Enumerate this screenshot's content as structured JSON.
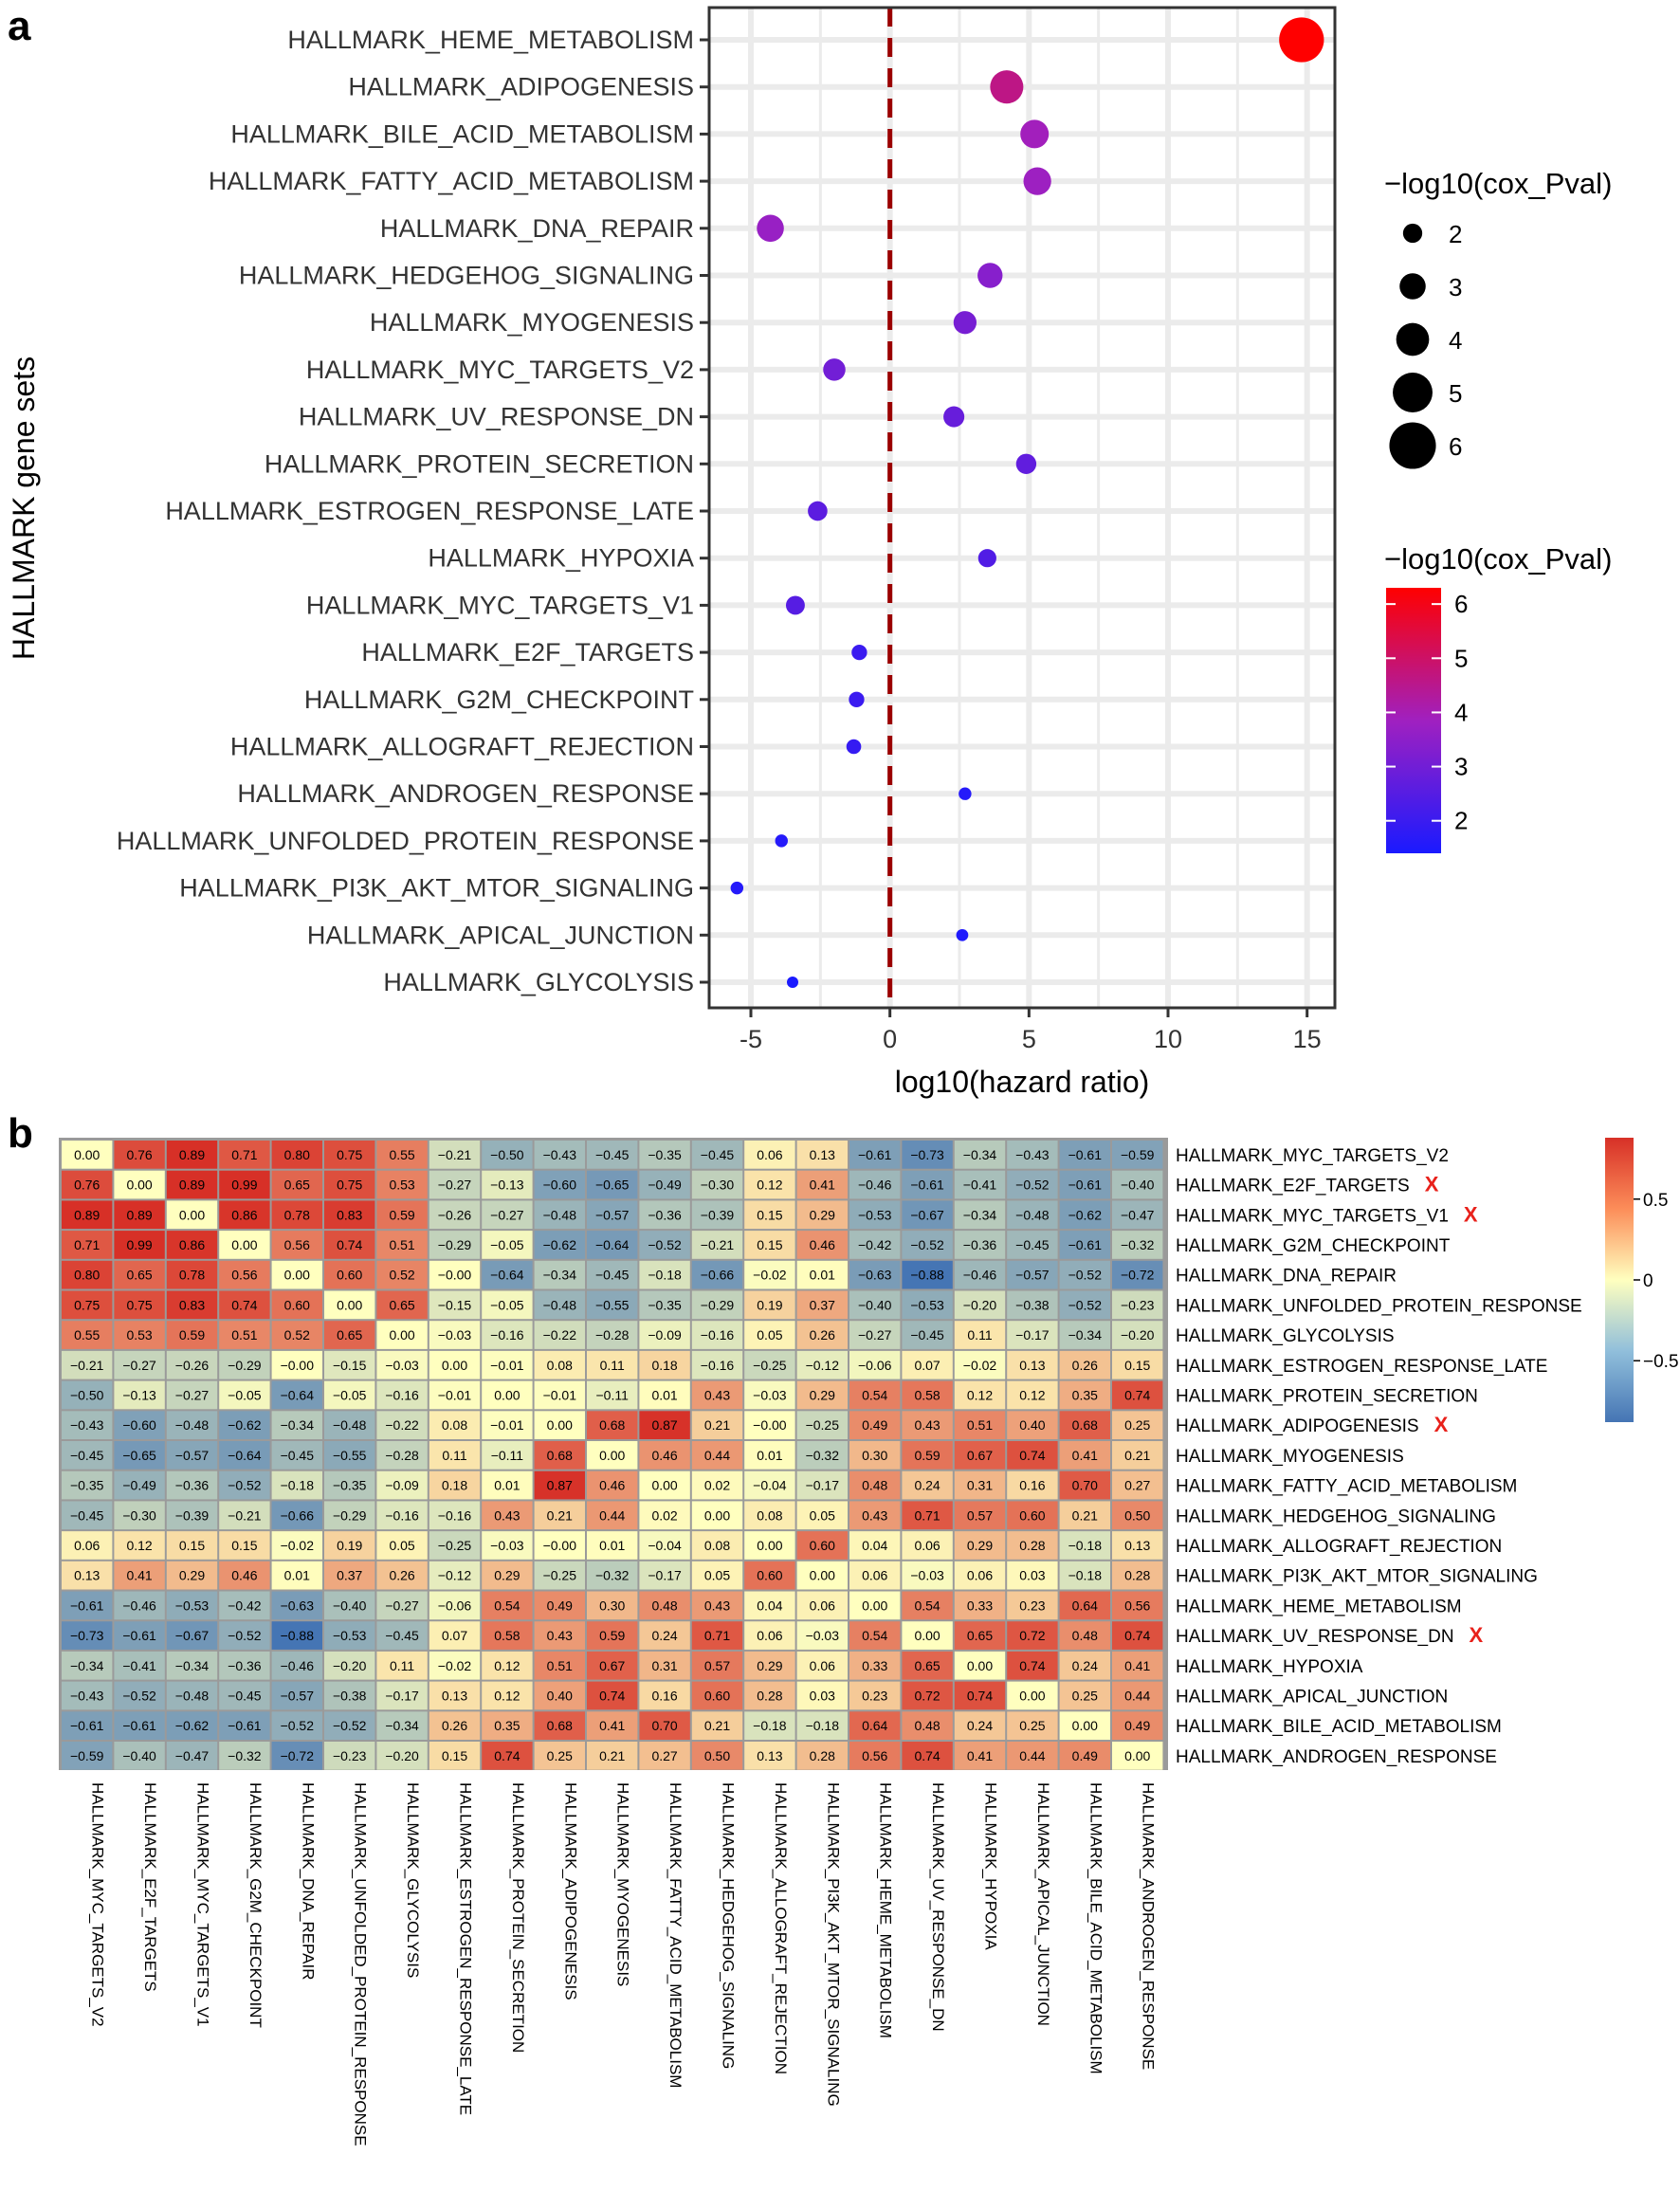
{
  "panels": {
    "a": "a",
    "b": "b"
  },
  "colors": {
    "low": "#1a1aff",
    "mid": "#a020c0",
    "high": "#ff0000",
    "dashed_line": "#9b0000",
    "hm_neg": "#4575b4",
    "hm_zero": "#ffffbf",
    "hm_pos": "#d73027",
    "mark": "#e8211b"
  },
  "chart_data": [
    {
      "type": "scatter",
      "xlabel": "log10(hazard ratio)",
      "ylabel": "HALLMARK gene sets",
      "xlim": [
        -6.5,
        16
      ],
      "xticks": [
        "-5",
        "0",
        "5",
        "10",
        "15"
      ],
      "xtick_values": [
        -5,
        0,
        5,
        10,
        15
      ],
      "reference_line_x": 0,
      "grid": true,
      "legend_position": "right",
      "size_legend": {
        "title": "−log10(cox_Pval)",
        "labels": [
          "2",
          "3",
          "4",
          "5",
          "6"
        ]
      },
      "color_legend": {
        "title": "−log10(cox_Pval)",
        "labels": [
          "6",
          "5",
          "4",
          "3",
          "2"
        ],
        "range": [
          1.4,
          6.3
        ]
      },
      "categories": [
        "HALLMARK_HEME_METABOLISM",
        "HALLMARK_ADIPOGENESIS",
        "HALLMARK_BILE_ACID_METABOLISM",
        "HALLMARK_FATTY_ACID_METABOLISM",
        "HALLMARK_DNA_REPAIR",
        "HALLMARK_HEDGEHOG_SIGNALING",
        "HALLMARK_MYOGENESIS",
        "HALLMARK_MYC_TARGETS_V2",
        "HALLMARK_UV_RESPONSE_DN",
        "HALLMARK_PROTEIN_SECRETION",
        "HALLMARK_ESTROGEN_RESPONSE_LATE",
        "HALLMARK_HYPOXIA",
        "HALLMARK_MYC_TARGETS_V1",
        "HALLMARK_E2F_TARGETS",
        "HALLMARK_G2M_CHECKPOINT",
        "HALLMARK_ALLOGRAFT_REJECTION",
        "HALLMARK_ANDROGEN_RESPONSE",
        "HALLMARK_UNFOLDED_PROTEIN_RESPONSE",
        "HALLMARK_PI3K_AKT_MTOR_SIGNALING",
        "HALLMARK_APICAL_JUNCTION",
        "HALLMARK_GLYCOLYSIS"
      ],
      "x": [
        14.8,
        4.2,
        5.2,
        5.3,
        -4.3,
        3.6,
        2.7,
        -2.0,
        2.3,
        4.9,
        -2.6,
        3.5,
        -3.4,
        -1.1,
        -1.2,
        -1.3,
        2.7,
        -3.9,
        -5.5,
        2.6,
        -3.5
      ],
      "neglog10_p": [
        6.3,
        4.6,
        3.9,
        3.8,
        3.7,
        3.4,
        3.1,
        3.0,
        2.8,
        2.7,
        2.6,
        2.4,
        2.5,
        2.0,
        2.0,
        1.9,
        1.6,
        1.6,
        1.6,
        1.5,
        1.4
      ]
    },
    {
      "type": "heatmap",
      "color_scale_ticks": [
        "0.5",
        "0",
        "−0.5"
      ],
      "color_scale_values": [
        0.5,
        0,
        -0.5
      ],
      "range": [
        -0.88,
        0.88
      ],
      "rows": [
        "HALLMARK_MYC_TARGETS_V2",
        "HALLMARK_E2F_TARGETS",
        "HALLMARK_MYC_TARGETS_V1",
        "HALLMARK_G2M_CHECKPOINT",
        "HALLMARK_DNA_REPAIR",
        "HALLMARK_UNFOLDED_PROTEIN_RESPONSE",
        "HALLMARK_GLYCOLYSIS",
        "HALLMARK_ESTROGEN_RESPONSE_LATE",
        "HALLMARK_PROTEIN_SECRETION",
        "HALLMARK_ADIPOGENESIS",
        "HALLMARK_MYOGENESIS",
        "HALLMARK_FATTY_ACID_METABOLISM",
        "HALLMARK_HEDGEHOG_SIGNALING",
        "HALLMARK_ALLOGRAFT_REJECTION",
        "HALLMARK_PI3K_AKT_MTOR_SIGNALING",
        "HALLMARK_HEME_METABOLISM",
        "HALLMARK_UV_RESPONSE_DN",
        "HALLMARK_HYPOXIA",
        "HALLMARK_APICAL_JUNCTION",
        "HALLMARK_BILE_ACID_METABOLISM",
        "HALLMARK_ANDROGEN_RESPONSE"
      ],
      "marked_rows": [
        "HALLMARK_E2F_TARGETS",
        "HALLMARK_MYC_TARGETS_V1",
        "HALLMARK_ADIPOGENESIS",
        "HALLMARK_UV_RESPONSE_DN"
      ],
      "mark_label": "X",
      "values": [
        [
          "0.00",
          "0.76",
          "0.89",
          "0.71",
          "0.80",
          "0.75",
          "0.55",
          "−0.21",
          "−0.50",
          "−0.43",
          "−0.45",
          "−0.35",
          "−0.45",
          "0.06",
          "0.13",
          "−0.61",
          "−0.73",
          "−0.34",
          "−0.43",
          "−0.61",
          "−0.59"
        ],
        [
          "0.76",
          "0.00",
          "0.89",
          "0.99",
          "0.65",
          "0.75",
          "0.53",
          "−0.27",
          "−0.13",
          "−0.60",
          "−0.65",
          "−0.49",
          "−0.30",
          "0.12",
          "0.41",
          "−0.46",
          "−0.61",
          "−0.41",
          "−0.52",
          "−0.61",
          "−0.40"
        ],
        [
          "0.89",
          "0.89",
          "0.00",
          "0.86",
          "0.78",
          "0.83",
          "0.59",
          "−0.26",
          "−0.27",
          "−0.48",
          "−0.57",
          "−0.36",
          "−0.39",
          "0.15",
          "0.29",
          "−0.53",
          "−0.67",
          "−0.34",
          "−0.48",
          "−0.62",
          "−0.47"
        ],
        [
          "0.71",
          "0.99",
          "0.86",
          "0.00",
          "0.56",
          "0.74",
          "0.51",
          "−0.29",
          "−0.05",
          "−0.62",
          "−0.64",
          "−0.52",
          "−0.21",
          "0.15",
          "0.46",
          "−0.42",
          "−0.52",
          "−0.36",
          "−0.45",
          "−0.61",
          "−0.32"
        ],
        [
          "0.80",
          "0.65",
          "0.78",
          "0.56",
          "0.00",
          "0.60",
          "0.52",
          "−0.00",
          "−0.64",
          "−0.34",
          "−0.45",
          "−0.18",
          "−0.66",
          "−0.02",
          "0.01",
          "−0.63",
          "−0.88",
          "−0.46",
          "−0.57",
          "−0.52",
          "−0.72"
        ],
        [
          "0.75",
          "0.75",
          "0.83",
          "0.74",
          "0.60",
          "0.00",
          "0.65",
          "−0.15",
          "−0.05",
          "−0.48",
          "−0.55",
          "−0.35",
          "−0.29",
          "0.19",
          "0.37",
          "−0.40",
          "−0.53",
          "−0.20",
          "−0.38",
          "−0.52",
          "−0.23"
        ],
        [
          "0.55",
          "0.53",
          "0.59",
          "0.51",
          "0.52",
          "0.65",
          "0.00",
          "−0.03",
          "−0.16",
          "−0.22",
          "−0.28",
          "−0.09",
          "−0.16",
          "0.05",
          "0.26",
          "−0.27",
          "−0.45",
          "0.11",
          "−0.17",
          "−0.34",
          "−0.20"
        ],
        [
          "−0.21",
          "−0.27",
          "−0.26",
          "−0.29",
          "−0.00",
          "−0.15",
          "−0.03",
          "0.00",
          "−0.01",
          "0.08",
          "0.11",
          "0.18",
          "−0.16",
          "−0.25",
          "−0.12",
          "−0.06",
          "0.07",
          "−0.02",
          "0.13",
          "0.26",
          "0.15"
        ],
        [
          "−0.50",
          "−0.13",
          "−0.27",
          "−0.05",
          "−0.64",
          "−0.05",
          "−0.16",
          "−0.01",
          "0.00",
          "−0.01",
          "−0.11",
          "0.01",
          "0.43",
          "−0.03",
          "0.29",
          "0.54",
          "0.58",
          "0.12",
          "0.12",
          "0.35",
          "0.74"
        ],
        [
          "−0.43",
          "−0.60",
          "−0.48",
          "−0.62",
          "−0.34",
          "−0.48",
          "−0.22",
          "0.08",
          "−0.01",
          "0.00",
          "0.68",
          "0.87",
          "0.21",
          "−0.00",
          "−0.25",
          "0.49",
          "0.43",
          "0.51",
          "0.40",
          "0.68",
          "0.25"
        ],
        [
          "−0.45",
          "−0.65",
          "−0.57",
          "−0.64",
          "−0.45",
          "−0.55",
          "−0.28",
          "0.11",
          "−0.11",
          "0.68",
          "0.00",
          "0.46",
          "0.44",
          "0.01",
          "−0.32",
          "0.30",
          "0.59",
          "0.67",
          "0.74",
          "0.41",
          "0.21"
        ],
        [
          "−0.35",
          "−0.49",
          "−0.36",
          "−0.52",
          "−0.18",
          "−0.35",
          "−0.09",
          "0.18",
          "0.01",
          "0.87",
          "0.46",
          "0.00",
          "0.02",
          "−0.04",
          "−0.17",
          "0.48",
          "0.24",
          "0.31",
          "0.16",
          "0.70",
          "0.27"
        ],
        [
          "−0.45",
          "−0.30",
          "−0.39",
          "−0.21",
          "−0.66",
          "−0.29",
          "−0.16",
          "−0.16",
          "0.43",
          "0.21",
          "0.44",
          "0.02",
          "0.00",
          "0.08",
          "0.05",
          "0.43",
          "0.71",
          "0.57",
          "0.60",
          "0.21",
          "0.50"
        ],
        [
          "0.06",
          "0.12",
          "0.15",
          "0.15",
          "−0.02",
          "0.19",
          "0.05",
          "−0.25",
          "−0.03",
          "−0.00",
          "0.01",
          "−0.04",
          "0.08",
          "0.00",
          "0.60",
          "0.04",
          "0.06",
          "0.29",
          "0.28",
          "−0.18",
          "0.13"
        ],
        [
          "0.13",
          "0.41",
          "0.29",
          "0.46",
          "0.01",
          "0.37",
          "0.26",
          "−0.12",
          "0.29",
          "−0.25",
          "−0.32",
          "−0.17",
          "0.05",
          "0.60",
          "0.00",
          "0.06",
          "−0.03",
          "0.06",
          "0.03",
          "−0.18",
          "0.28"
        ],
        [
          "−0.61",
          "−0.46",
          "−0.53",
          "−0.42",
          "−0.63",
          "−0.40",
          "−0.27",
          "−0.06",
          "0.54",
          "0.49",
          "0.30",
          "0.48",
          "0.43",
          "0.04",
          "0.06",
          "0.00",
          "0.54",
          "0.33",
          "0.23",
          "0.64",
          "0.56"
        ],
        [
          "−0.73",
          "−0.61",
          "−0.67",
          "−0.52",
          "−0.88",
          "−0.53",
          "−0.45",
          "0.07",
          "0.58",
          "0.43",
          "0.59",
          "0.24",
          "0.71",
          "0.06",
          "−0.03",
          "0.54",
          "0.00",
          "0.65",
          "0.72",
          "0.48",
          "0.74"
        ],
        [
          "−0.34",
          "−0.41",
          "−0.34",
          "−0.36",
          "−0.46",
          "−0.20",
          "0.11",
          "−0.02",
          "0.12",
          "0.51",
          "0.67",
          "0.31",
          "0.57",
          "0.29",
          "0.06",
          "0.33",
          "0.65",
          "0.00",
          "0.74",
          "0.24",
          "0.41"
        ],
        [
          "−0.43",
          "−0.52",
          "−0.48",
          "−0.45",
          "−0.57",
          "−0.38",
          "−0.17",
          "0.13",
          "0.12",
          "0.40",
          "0.74",
          "0.16",
          "0.60",
          "0.28",
          "0.03",
          "0.23",
          "0.72",
          "0.74",
          "0.00",
          "0.25",
          "0.44"
        ],
        [
          "−0.61",
          "−0.61",
          "−0.62",
          "−0.61",
          "−0.52",
          "−0.52",
          "−0.34",
          "0.26",
          "0.35",
          "0.68",
          "0.41",
          "0.70",
          "0.21",
          "−0.18",
          "−0.18",
          "0.64",
          "0.48",
          "0.24",
          "0.25",
          "0.00",
          "0.49"
        ],
        [
          "−0.59",
          "−0.40",
          "−0.47",
          "−0.32",
          "−0.72",
          "−0.23",
          "−0.20",
          "0.15",
          "0.74",
          "0.25",
          "0.21",
          "0.27",
          "0.50",
          "0.13",
          "0.28",
          "0.56",
          "0.74",
          "0.41",
          "0.44",
          "0.49",
          "0.00"
        ]
      ]
    }
  ]
}
